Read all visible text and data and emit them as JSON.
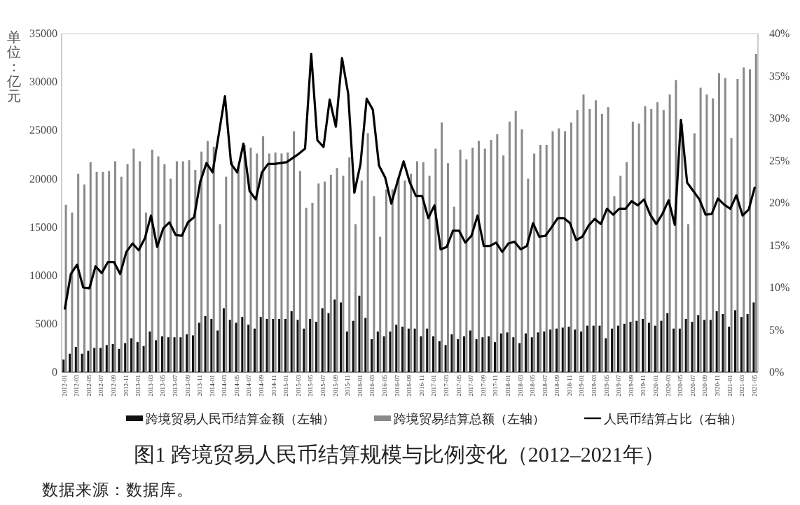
{
  "chart_data": {
    "type": "bar",
    "title": "图1 跨境贸易人民币结算规模与比例变化（2012–2021年）",
    "ylabel": "单位：亿元",
    "annotations": [
      "数据来源：数据库。"
    ],
    "categories": [
      "2012-01",
      null,
      "2012-03",
      null,
      "2012-05",
      null,
      "2012-07",
      null,
      "2012-09",
      null,
      "2012-11",
      null,
      "2013-01",
      null,
      "2013-03",
      null,
      "2013-05",
      null,
      "2013-07",
      null,
      "2013-09",
      null,
      "2013-11",
      null,
      "2014-01",
      null,
      "2014-03",
      null,
      "2014-05",
      null,
      "2014-07",
      null,
      "2014-09",
      null,
      "2014-11",
      null,
      "2015-01",
      null,
      "2015-03",
      null,
      "2015-05",
      null,
      "2015-07",
      null,
      "2015-09",
      null,
      "2015-11",
      null,
      "2016-01",
      null,
      "2016-03",
      null,
      "2016-05",
      null,
      "2016-07",
      null,
      "2016-09",
      null,
      "2016-11",
      null,
      "2017-01",
      null,
      "2017-03",
      null,
      "2017-05",
      null,
      "2017-07",
      null,
      "2017-09",
      null,
      "2017-11",
      null,
      "2018-01",
      null,
      "2018-03",
      null,
      "2018-05",
      null,
      "2018-07",
      null,
      "2018-09",
      null,
      "2018-11",
      null,
      "2019-01",
      null,
      "2019-03",
      null,
      "2019-05",
      null,
      "2019-07",
      null,
      "2019-09",
      null,
      "2019-11",
      null,
      "2020-01",
      null,
      "2020-03",
      null,
      "2020-05",
      null,
      "2020-07",
      null,
      "2020-09",
      null,
      "2020-11",
      null,
      "2021-01",
      null,
      "2021-03",
      null,
      "2021-05"
    ],
    "series": [
      {
        "name": "跨境贸易人民币结算金额（左轴）",
        "color": "#111111",
        "values": [
          1300,
          1900,
          2600,
          1900,
          2200,
          2500,
          2500,
          2800,
          2900,
          2400,
          3000,
          3500,
          3100,
          2700,
          4200,
          3300,
          3700,
          3600,
          3600,
          3600,
          3900,
          3800,
          5100,
          5800,
          5500,
          4300,
          6600,
          5400,
          5100,
          5700,
          4900,
          4500,
          5700,
          5500,
          5500,
          5500,
          5500,
          6300,
          5400,
          4500,
          5500,
          5200,
          6600,
          6100,
          7500,
          7200,
          4200,
          5300,
          7900,
          5600,
          3400,
          4200,
          3700,
          4200,
          4900,
          4700,
          4500,
          4500,
          3700,
          4500,
          3700,
          3200,
          2800,
          3900,
          3400,
          3700,
          4300,
          3400,
          3600,
          3700,
          3100,
          4000,
          4100,
          3600,
          3000,
          4000,
          3600,
          4100,
          4200,
          4400,
          4500,
          4600,
          4700,
          4400,
          4200,
          4800,
          4800,
          4800,
          3500,
          4500,
          4800,
          5000,
          5200,
          5300,
          5500,
          5100,
          4800,
          5300,
          6100,
          4500,
          4500,
          5500,
          5200,
          5900,
          5400,
          5400,
          6300,
          6000,
          4700,
          6400,
          5700,
          6000,
          7200
        ]
      },
      {
        "name": "跨境贸易结算总额（左轴）",
        "color": "#8a8a8a",
        "values": [
          17300,
          16500,
          20500,
          19400,
          21700,
          20700,
          20700,
          20800,
          21800,
          20200,
          21500,
          23100,
          21800,
          16500,
          23000,
          22300,
          21500,
          20000,
          21800,
          21800,
          21900,
          20900,
          22800,
          23900,
          23300,
          15300,
          20200,
          21800,
          21300,
          23500,
          23200,
          22600,
          24400,
          22600,
          22700,
          22600,
          22700,
          24900,
          20800,
          17000,
          17500,
          19500,
          19700,
          20400,
          21100,
          20300,
          22200,
          15300,
          19800,
          24700,
          18200,
          14000,
          18900,
          18900,
          20200,
          19800,
          20500,
          21800,
          21700,
          20300,
          23100,
          25800,
          21600,
          17100,
          23000,
          22000,
          23200,
          23900,
          23100,
          24000,
          24600,
          22400,
          25900,
          27000,
          25100,
          20000,
          22600,
          23500,
          23500,
          24900,
          25200,
          24900,
          25800,
          27100,
          28700,
          27200,
          28100,
          26700,
          27400,
          18200,
          20300,
          21700,
          25900,
          25700,
          27500,
          27200,
          27900,
          27100,
          28700,
          30200,
          25700,
          15300,
          24700,
          29400,
          28700,
          28300,
          30900,
          30400,
          24200,
          30300,
          31500,
          31300,
          32900
        ]
      },
      {
        "name": "人民币结算占比（右轴）",
        "type": "line",
        "axis": "y2",
        "color": "#000000",
        "values": [
          7.4,
          11.6,
          12.7,
          10.0,
          9.9,
          12.5,
          11.7,
          13.0,
          13.0,
          11.6,
          14.2,
          15.2,
          14.4,
          15.8,
          18.5,
          14.8,
          17.0,
          17.7,
          16.2,
          16.1,
          17.7,
          18.3,
          22.5,
          24.7,
          23.6,
          28.1,
          32.6,
          24.6,
          23.6,
          27.0,
          21.4,
          20.4,
          23.6,
          24.6,
          24.6,
          24.7,
          24.8,
          25.3,
          25.8,
          26.4,
          37.6,
          27.4,
          26.6,
          32.2,
          29.0,
          37.1,
          32.9,
          21.2,
          24.6,
          32.3,
          31.0,
          24.4,
          23.0,
          19.9,
          22.5,
          24.9,
          22.4,
          20.8,
          20.8,
          18.2,
          19.7,
          14.5,
          14.8,
          16.7,
          16.7,
          15.3,
          16.1,
          18.5,
          14.9,
          14.9,
          15.3,
          14.2,
          15.2,
          15.4,
          14.5,
          14.9,
          17.6,
          16.0,
          16.1,
          17.1,
          18.2,
          18.2,
          17.6,
          15.6,
          16.0,
          17.3,
          18.1,
          17.5,
          19.3,
          18.6,
          19.3,
          19.3,
          20.2,
          19.7,
          20.4,
          18.6,
          17.5,
          18.7,
          20.3,
          17.4,
          29.8,
          22.4,
          21.4,
          20.4,
          18.6,
          18.7,
          20.5,
          19.8,
          19.3,
          20.9,
          18.5,
          19.2,
          21.9
        ]
      }
    ],
    "ylim": [
      0,
      35000
    ],
    "yticks": [
      0,
      5000,
      10000,
      15000,
      20000,
      25000,
      30000,
      35000
    ],
    "y2lim": [
      0,
      40
    ],
    "y2ticks": [
      {
        "value": 0,
        "label": "0%"
      },
      {
        "value": 5,
        "label": "5%"
      },
      {
        "value": 10,
        "label": "10%"
      },
      {
        "value": 15,
        "label": "15%"
      },
      {
        "value": 20,
        "label": "20%"
      },
      {
        "value": 25,
        "label": "25%"
      },
      {
        "value": 30,
        "label": "30%"
      },
      {
        "value": 35,
        "label": "35%"
      },
      {
        "value": 40,
        "label": "40%"
      }
    ],
    "legend": "bottom",
    "line_style": "solid",
    "marker": "none"
  }
}
